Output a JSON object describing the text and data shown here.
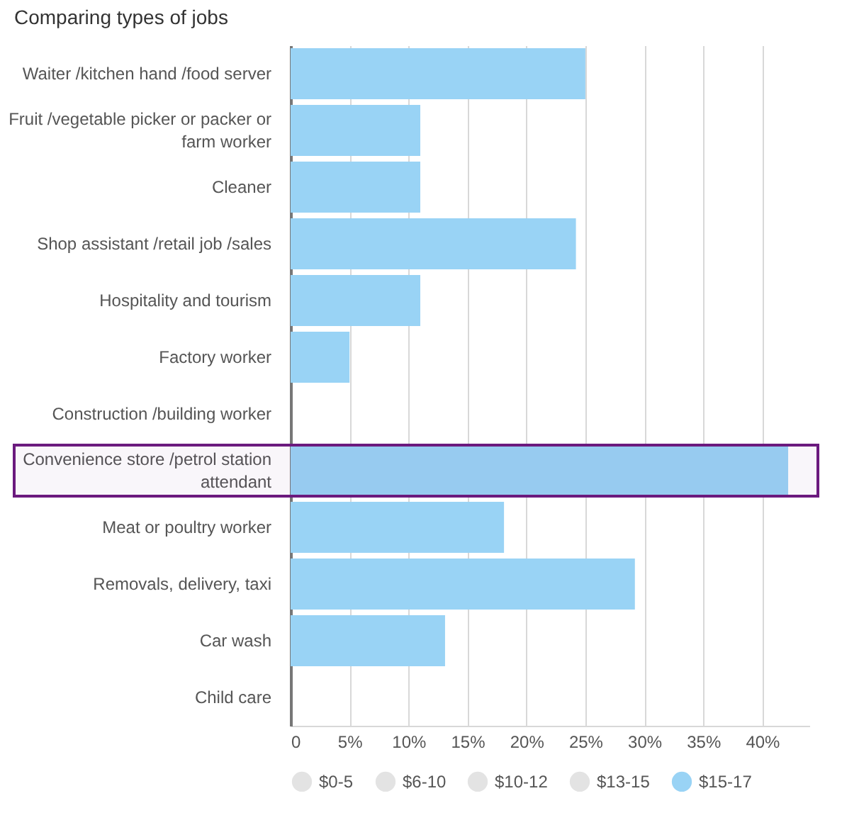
{
  "chart_data": {
    "type": "bar",
    "orientation": "horizontal",
    "title": "Comparing types of jobs",
    "categories": [
      "Waiter /kitchen hand /food server",
      "Fruit /vegetable picker or packer or farm worker",
      "Cleaner",
      "Shop assistant /retail job /sales",
      "Hospitality and tourism",
      "Factory worker",
      "Construction /building worker",
      "Convenience store /petrol station attendant",
      "Meat or poultry worker",
      "Removals, delivery, taxi",
      "Car wash",
      "Child care"
    ],
    "series": [
      {
        "name": "$0-5",
        "color": "#e3e3e3",
        "values": [
          null,
          null,
          null,
          null,
          null,
          null,
          null,
          null,
          null,
          null,
          null,
          null
        ]
      },
      {
        "name": "$6-10",
        "color": "#e3e3e3",
        "values": [
          null,
          null,
          null,
          null,
          null,
          null,
          null,
          null,
          null,
          null,
          null,
          null
        ]
      },
      {
        "name": "$10-12",
        "color": "#e3e3e3",
        "values": [
          null,
          null,
          null,
          null,
          null,
          null,
          null,
          null,
          null,
          null,
          null,
          null
        ]
      },
      {
        "name": "$13-15",
        "color": "#e3e3e3",
        "values": [
          null,
          null,
          null,
          null,
          null,
          null,
          null,
          null,
          null,
          null,
          null,
          null
        ]
      },
      {
        "name": "$15-17",
        "color": "#99d3f5",
        "values": [
          25,
          11,
          11,
          24.2,
          11,
          5,
          0,
          42.2,
          18.1,
          29.2,
          13.1,
          0
        ]
      }
    ],
    "xlim": [
      0,
      44
    ],
    "xticks": [
      {
        "value": 0,
        "label": "0"
      },
      {
        "value": 5,
        "label": "5%"
      },
      {
        "value": 10,
        "label": "10%"
      },
      {
        "value": 15,
        "label": "15%"
      },
      {
        "value": 20,
        "label": "20%"
      },
      {
        "value": 25,
        "label": "25%"
      },
      {
        "value": 30,
        "label": "30%"
      },
      {
        "value": 35,
        "label": "35%"
      },
      {
        "value": 40,
        "label": "40%"
      }
    ],
    "grid": "x",
    "legend": "bottom",
    "bands": [
      {
        "axis": "y",
        "from": "Convenience store /petrol station attendant",
        "to": "Convenience store /petrol station attendant",
        "color": "#6b1a7e"
      }
    ]
  }
}
